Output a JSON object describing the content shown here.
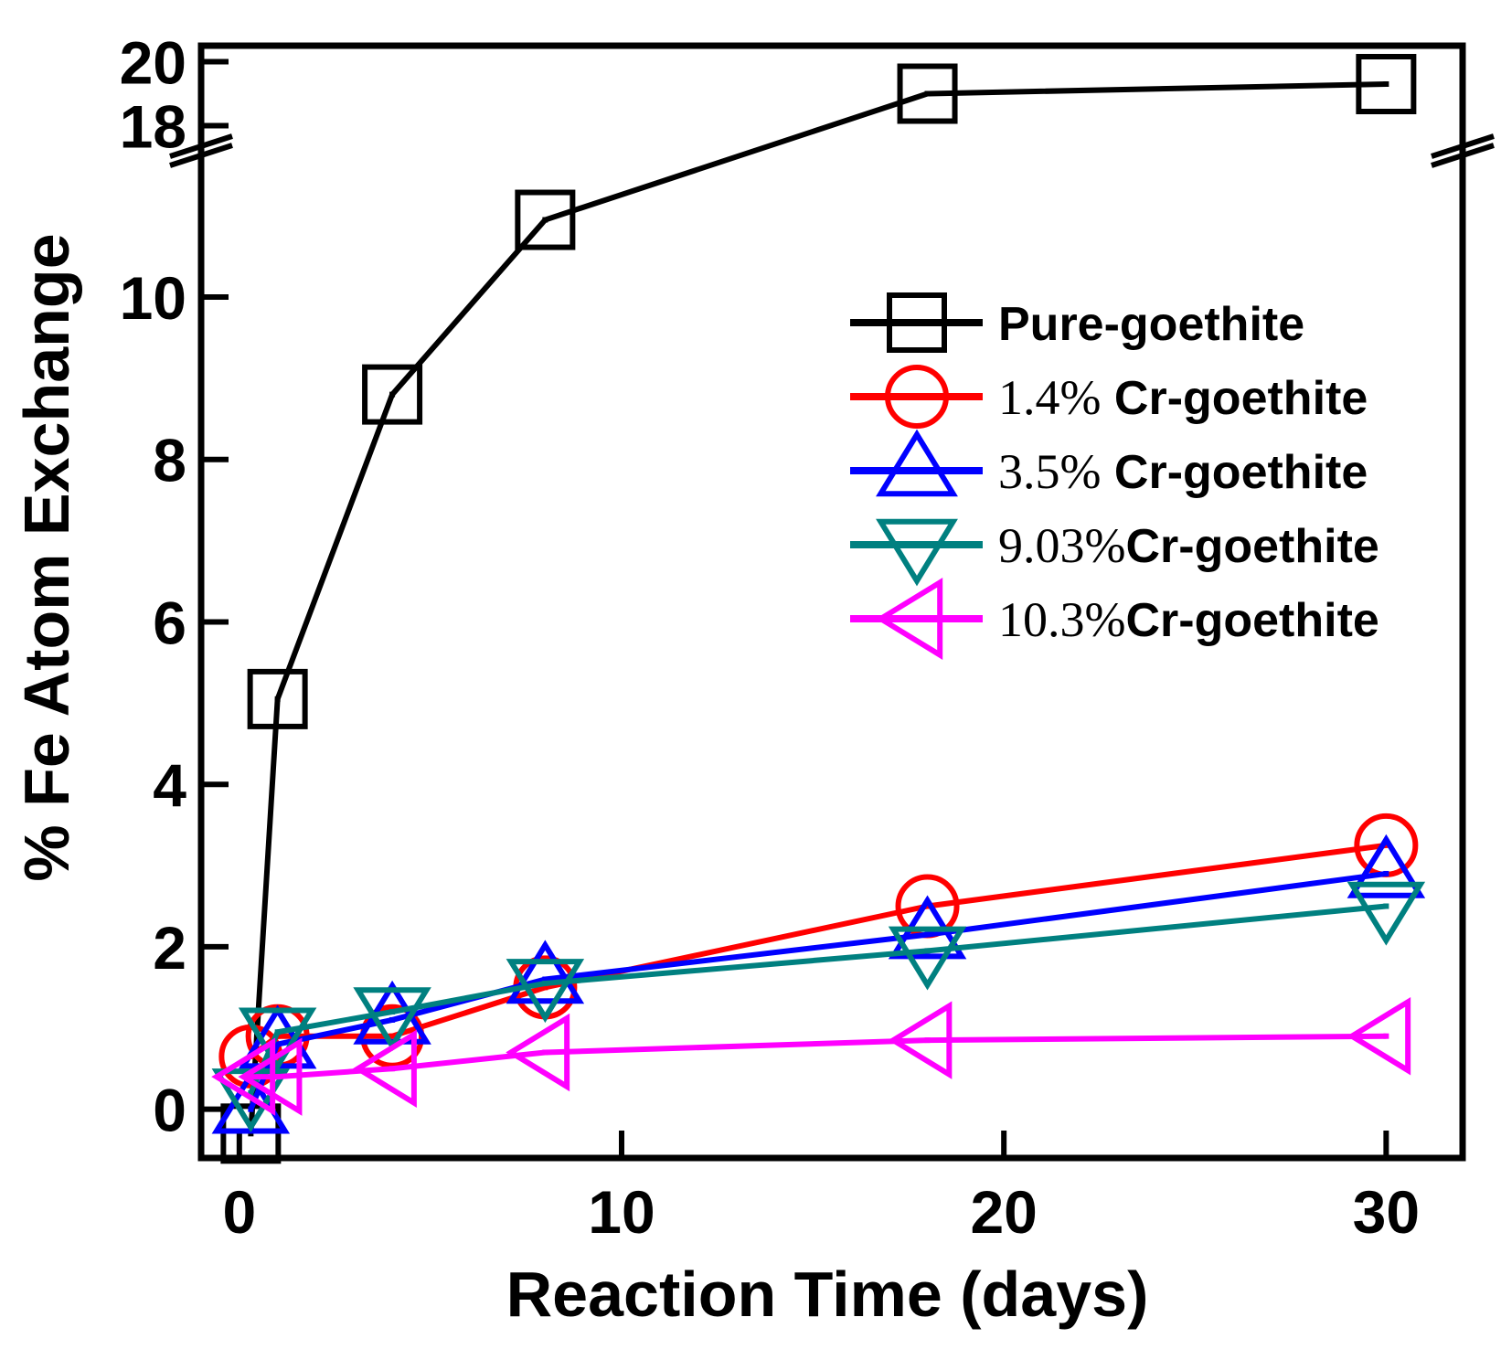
{
  "chart_data": {
    "type": "line",
    "title": "",
    "xlabel": "Reaction Time (days)",
    "ylabel": "% Fe Atom Exchange",
    "xlim": [
      -1,
      32
    ],
    "ylim_lower": [
      -0.6,
      11.8
    ],
    "ylim_upper": [
      17.5,
      20.5
    ],
    "y_break": true,
    "xticks": [
      0,
      10,
      20,
      30
    ],
    "yticks_lower": [
      0,
      2,
      4,
      6,
      8,
      10
    ],
    "yticks_upper": [
      18,
      20
    ],
    "grid": false,
    "legend_position": "top-right",
    "x": [
      0.3,
      1,
      4,
      8,
      18,
      30
    ],
    "series": [
      {
        "name": "Pure-goethite",
        "label_number": "",
        "label_text": "Pure-goethite",
        "marker": "square",
        "color": "#000000",
        "values": [
          -0.3,
          5.05,
          8.8,
          10.95,
          19.0,
          19.3
        ]
      },
      {
        "name": "1.4% Cr-goethite",
        "label_number": "1.4%",
        "label_text": " Cr-goethite",
        "marker": "circle",
        "color": "#ff0000",
        "values": [
          0.65,
          0.9,
          0.9,
          1.5,
          2.5,
          3.25
        ]
      },
      {
        "name": "3.5% Cr-goethite",
        "label_number": "3.5%",
        "label_text": " Cr-goethite",
        "marker": "triangle-up",
        "color": "#0000ff",
        "values": [
          0.0,
          0.8,
          1.1,
          1.6,
          2.15,
          2.9
        ]
      },
      {
        "name": "9.03%Cr-goethite",
        "label_number": "9.03%",
        "label_text": "Cr-goethite",
        "marker": "triangle-down",
        "color": "#008080",
        "values": [
          0.2,
          0.95,
          1.2,
          1.55,
          1.95,
          2.5
        ]
      },
      {
        "name": "10.3%Cr-goethite",
        "label_number": "10.3%",
        "label_text": "Cr-goethite",
        "marker": "triangle-left",
        "color": "#ff00ff",
        "values": [
          0.4,
          0.4,
          0.5,
          0.7,
          0.85,
          0.9
        ]
      }
    ]
  }
}
